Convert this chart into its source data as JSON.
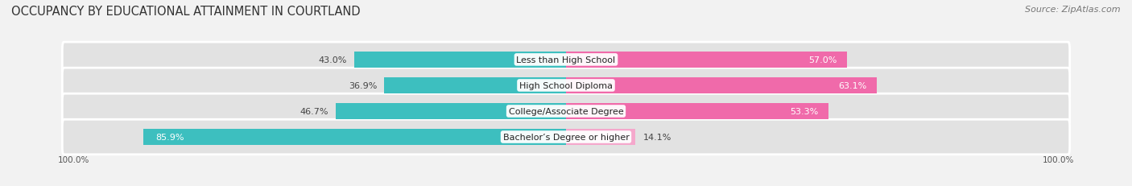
{
  "title": "OCCUPANCY BY EDUCATIONAL ATTAINMENT IN COURTLAND",
  "source": "Source: ZipAtlas.com",
  "categories": [
    "Less than High School",
    "High School Diploma",
    "College/Associate Degree",
    "Bachelor’s Degree or higher"
  ],
  "owner_values": [
    43.0,
    36.9,
    46.7,
    85.9
  ],
  "renter_values": [
    57.0,
    63.1,
    53.3,
    14.1
  ],
  "owner_color": "#3dbfbf",
  "renter_color": "#f06aaa",
  "renter_color_light": "#f5a8cc",
  "bg_color": "#f2f2f2",
  "row_bg_color": "#e2e2e2",
  "title_fontsize": 10.5,
  "source_fontsize": 8,
  "label_fontsize": 8,
  "axis_label_fontsize": 7.5,
  "legend_fontsize": 8,
  "figsize": [
    14.06,
    2.32
  ],
  "dpi": 100
}
